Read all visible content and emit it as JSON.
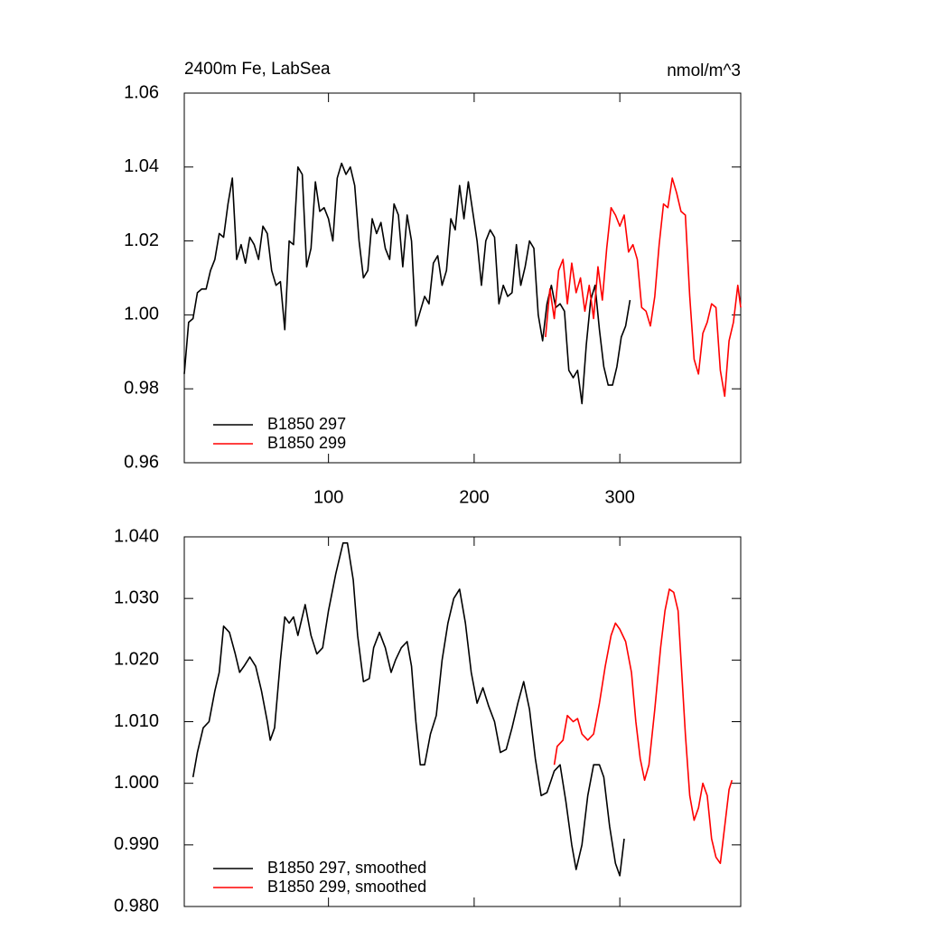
{
  "chart_data": [
    {
      "type": "line",
      "title": "2400m Fe, LabSea",
      "units": "nmol/m^3",
      "xlim": [
        1,
        383
      ],
      "xticks": [
        100,
        200,
        300
      ],
      "xtick_labels": true,
      "ylim": [
        0.96,
        1.06
      ],
      "yticks": [
        0.96,
        0.98,
        {
          "value": 1,
          "label": "1.00"
        },
        1.02,
        1.04,
        1.06
      ],
      "legend": "lower left",
      "series": [
        {
          "name": "B1850 297",
          "color": "#000000",
          "x": [
            1,
            4,
            7,
            10,
            13,
            16,
            19,
            22,
            25,
            28,
            31,
            34,
            37,
            40,
            43,
            46,
            49,
            52,
            55,
            58,
            61,
            64,
            67,
            70,
            73,
            76,
            79,
            82,
            85,
            88,
            91,
            94,
            97,
            100,
            103,
            106,
            109,
            112,
            115,
            118,
            121,
            124,
            127,
            130,
            133,
            136,
            139,
            142,
            145,
            148,
            151,
            154,
            157,
            160,
            163,
            166,
            169,
            172,
            175,
            178,
            181,
            184,
            187,
            190,
            193,
            196,
            199,
            202,
            205,
            208,
            211,
            214,
            217,
            220,
            223,
            226,
            229,
            232,
            235,
            238,
            241,
            244,
            247,
            250,
            253,
            256,
            259,
            262,
            265,
            268,
            271,
            274,
            277,
            280,
            283,
            286,
            289,
            292,
            295,
            298,
            301,
            304,
            307
          ],
          "values": [
            0.984,
            0.998,
            0.999,
            1.006,
            1.007,
            1.007,
            1.012,
            1.015,
            1.022,
            1.021,
            1.03,
            1.037,
            1.015,
            1.019,
            1.014,
            1.021,
            1.019,
            1.015,
            1.024,
            1.022,
            1.012,
            1.008,
            1.009,
            0.996,
            1.02,
            1.019,
            1.04,
            1.038,
            1.013,
            1.018,
            1.036,
            1.028,
            1.029,
            1.026,
            1.02,
            1.037,
            1.041,
            1.038,
            1.04,
            1.035,
            1.02,
            1.01,
            1.012,
            1.026,
            1.022,
            1.025,
            1.018,
            1.015,
            1.03,
            1.027,
            1.013,
            1.027,
            1.02,
            0.997,
            1.001,
            1.005,
            1.003,
            1.014,
            1.016,
            1.008,
            1.012,
            1.026,
            1.023,
            1.035,
            1.026,
            1.036,
            1.028,
            1.02,
            1.008,
            1.02,
            1.023,
            1.021,
            1.003,
            1.008,
            1.005,
            1.006,
            1.019,
            1.008,
            1.013,
            1.02,
            1.018,
            1.0,
            0.993,
            1.003,
            1.008,
            1.002,
            1.003,
            1.001,
            0.985,
            0.983,
            0.985,
            0.976,
            0.992,
            1.004,
            1.008,
            0.996,
            0.986,
            0.981,
            0.981,
            0.986,
            0.994,
            0.997,
            1.004
          ]
        },
        {
          "name": "B1850 299",
          "color": "#ff0000",
          "x": [
            249,
            252,
            255,
            258,
            261,
            264,
            267,
            270,
            273,
            276,
            279,
            282,
            285,
            288,
            291,
            294,
            297,
            300,
            303,
            306,
            309,
            312,
            315,
            318,
            321,
            324,
            327,
            330,
            333,
            336,
            339,
            342,
            345,
            348,
            351,
            354,
            357,
            360,
            363,
            366,
            369,
            372,
            375,
            378,
            381,
            383
          ],
          "values": [
            0.994,
            1.007,
            0.999,
            1.012,
            1.015,
            1.003,
            1.014,
            1.006,
            1.01,
            1.001,
            1.008,
            0.999,
            1.013,
            1.004,
            1.018,
            1.029,
            1.027,
            1.024,
            1.027,
            1.017,
            1.019,
            1.015,
            1.002,
            1.001,
            0.997,
            1.005,
            1.019,
            1.03,
            1.029,
            1.037,
            1.033,
            1.028,
            1.027,
            1.005,
            0.988,
            0.984,
            0.995,
            0.998,
            1.003,
            1.002,
            0.985,
            0.978,
            0.993,
            0.998,
            1.008,
            1.002
          ]
        }
      ]
    },
    {
      "type": "line",
      "xlim": [
        1,
        383
      ],
      "xticks": [
        100,
        200,
        300
      ],
      "xtick_labels": false,
      "ylim": [
        0.98,
        1.04
      ],
      "yticks": [
        {
          "value": 0.98,
          "label": "0.980"
        },
        {
          "value": 0.99,
          "label": "0.990"
        },
        {
          "value": 1,
          "label": "1.000"
        },
        {
          "value": 1.01,
          "label": "1.010"
        },
        {
          "value": 1.02,
          "label": "1.020"
        },
        {
          "value": 1.03,
          "label": "1.030"
        },
        {
          "value": 1.04,
          "label": "1.040"
        }
      ],
      "legend": "lower left",
      "series": [
        {
          "name": "B1850 297, smoothed",
          "color": "#000000",
          "x": [
            7,
            10,
            14,
            18,
            22,
            25,
            28,
            32,
            36,
            39,
            42,
            46,
            50,
            54,
            58,
            60,
            63,
            67,
            70,
            73,
            76,
            79,
            84,
            88,
            92,
            96,
            100,
            105,
            110,
            113,
            117,
            120,
            124,
            128,
            131,
            135,
            139,
            143,
            146,
            150,
            154,
            157,
            160,
            163,
            166,
            170,
            174,
            178,
            182,
            186,
            190,
            194,
            198,
            202,
            206,
            210,
            214,
            218,
            222,
            226,
            230,
            234,
            238,
            242,
            246,
            250,
            255,
            259,
            263,
            267,
            270,
            274,
            278,
            282,
            286,
            289,
            293,
            297,
            300,
            303
          ],
          "values": [
            1.001,
            1.005,
            1.009,
            1.01,
            1.015,
            1.018,
            1.0255,
            1.0245,
            1.021,
            1.018,
            1.019,
            1.0205,
            1.019,
            1.015,
            1.01,
            1.007,
            1.009,
            1.02,
            1.027,
            1.026,
            1.027,
            1.024,
            1.029,
            1.024,
            1.021,
            1.022,
            1.028,
            1.034,
            1.039,
            1.039,
            1.033,
            1.024,
            1.0165,
            1.017,
            1.022,
            1.0245,
            1.022,
            1.018,
            1.02,
            1.022,
            1.023,
            1.019,
            1.01,
            1.003,
            1.003,
            1.008,
            1.011,
            1.02,
            1.026,
            1.03,
            1.0315,
            1.026,
            1.018,
            1.013,
            1.0155,
            1.0125,
            1.01,
            1.005,
            1.0055,
            1.009,
            1.013,
            1.0165,
            1.012,
            1.004,
            0.998,
            0.9985,
            1.002,
            1.003,
            0.997,
            0.99,
            0.986,
            0.99,
            0.998,
            1.003,
            1.003,
            1.001,
            0.993,
            0.987,
            0.985,
            0.991
          ]
        },
        {
          "name": "B1850 299, smoothed",
          "color": "#ff0000",
          "x": [
            255,
            257,
            261,
            264,
            268,
            271,
            274,
            278,
            282,
            286,
            290,
            294,
            297,
            300,
            304,
            308,
            311,
            314,
            317,
            320,
            324,
            328,
            331,
            334,
            337,
            340,
            342,
            345,
            348,
            351,
            354,
            357,
            360,
            363,
            366,
            369,
            372,
            375,
            377
          ],
          "values": [
            1.003,
            1.006,
            1.007,
            1.011,
            1.01,
            1.0105,
            1.008,
            1.007,
            1.008,
            1.013,
            1.019,
            1.024,
            1.026,
            1.025,
            1.023,
            1.018,
            1.01,
            1.004,
            1.0005,
            1.003,
            1.012,
            1.022,
            1.028,
            1.0315,
            1.031,
            1.028,
            1.02,
            1.008,
            0.998,
            0.994,
            0.996,
            1.0,
            0.998,
            0.991,
            0.988,
            0.987,
            0.993,
            0.999,
            1.0005
          ]
        }
      ]
    }
  ]
}
